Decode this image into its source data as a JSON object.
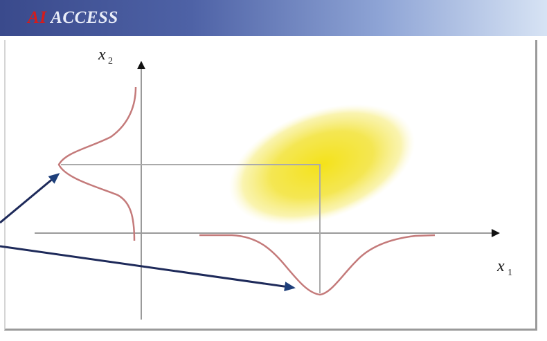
{
  "titlebar": {
    "accent_text": "AI",
    "title_text": " ACCESS"
  },
  "diagram": {
    "y_axis_label": "x",
    "y_axis_subscript": "2",
    "x_axis_label": "x",
    "x_axis_subscript": "1"
  },
  "colors": {
    "titlebar_dark": "#3a4a8c",
    "titlebar_light": "#d7e3f4",
    "title_accent": "#d41c1c",
    "axis": "#9a9a9a",
    "curve": "#c47a7a",
    "ellipse": "#f2e23a",
    "arrow": "#1e2a5a"
  }
}
